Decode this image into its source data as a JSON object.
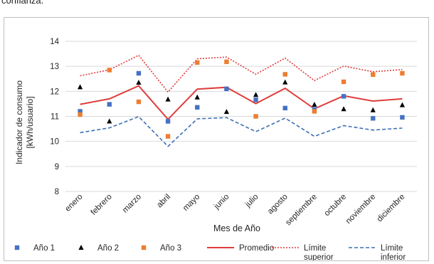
{
  "caption": "confianza.",
  "chart_data": {
    "type": "line",
    "title": "",
    "xlabel": "Mes de Año",
    "ylabel_lines": [
      "Indicador de consumo",
      "[kWh/usuario]"
    ],
    "ylim": [
      8,
      14
    ],
    "yticks": [
      8,
      9,
      10,
      11,
      12,
      13,
      14
    ],
    "grid": true,
    "legend_position": "bottom",
    "categories": [
      "enero",
      "febrero",
      "marzo",
      "abril",
      "mayo",
      "junio",
      "julio",
      "agosto",
      "septiembre",
      "octubre",
      "noviembre",
      "diciembre"
    ],
    "series": [
      {
        "name": "Año 1",
        "kind": "marker-square",
        "color": "#4472c4",
        "values": [
          11.2,
          11.48,
          12.72,
          10.8,
          11.36,
          12.1,
          11.66,
          11.33,
          11.28,
          11.8,
          10.92,
          10.96
        ]
      },
      {
        "name": "Año 2",
        "kind": "marker-triangle",
        "color": "#000000",
        "values": [
          12.17,
          10.8,
          12.35,
          11.68,
          11.76,
          11.18,
          11.86,
          12.36,
          11.47,
          11.29,
          11.25,
          11.45
        ]
      },
      {
        "name": "Año 3",
        "kind": "marker-square",
        "color": "#ed7d31",
        "values": [
          11.07,
          12.85,
          11.58,
          10.2,
          13.15,
          13.18,
          11.0,
          12.68,
          11.2,
          12.38,
          12.67,
          12.72
        ]
      },
      {
        "name": "Promedio",
        "kind": "line-solid",
        "color": "#e03c3c",
        "values": [
          11.48,
          11.7,
          12.22,
          10.88,
          12.09,
          12.16,
          11.51,
          12.12,
          11.3,
          11.82,
          11.61,
          11.7
        ]
      },
      {
        "name": "Límite superior",
        "legend_lines": [
          "Límite",
          "superior"
        ],
        "kind": "line-dotted",
        "color": "#e03c3c",
        "values": [
          12.62,
          12.86,
          13.44,
          11.97,
          13.3,
          13.37,
          12.68,
          13.33,
          12.43,
          13.01,
          12.78,
          12.87
        ]
      },
      {
        "name": "Límite inferior",
        "legend_lines": [
          "Límite",
          "inferior"
        ],
        "kind": "line-dashed",
        "color": "#3b6fb6",
        "values": [
          10.35,
          10.54,
          10.99,
          9.8,
          10.9,
          10.95,
          10.39,
          10.93,
          10.2,
          10.63,
          10.45,
          10.53
        ]
      }
    ]
  }
}
